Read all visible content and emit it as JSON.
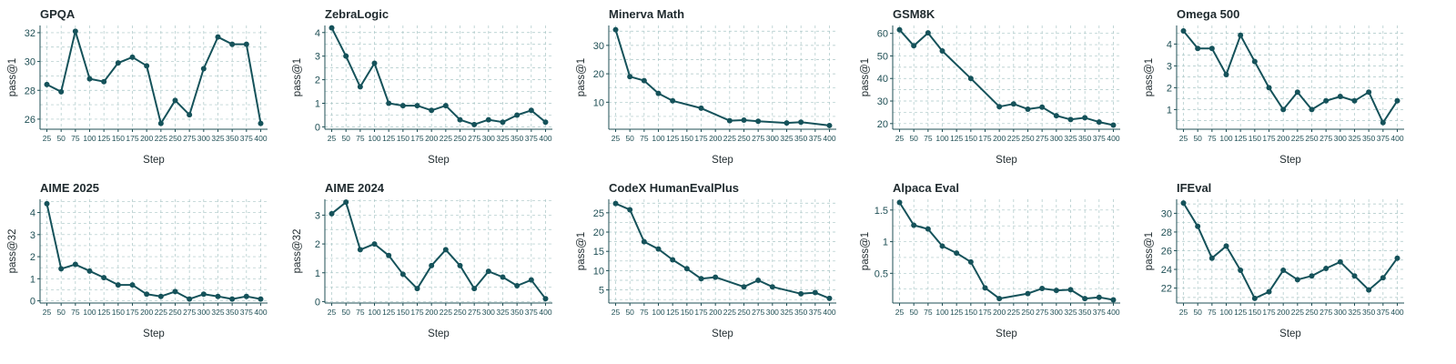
{
  "colors": {
    "series": "#15525a"
  },
  "chart_data": [
    {
      "type": "line",
      "title": "GPQA",
      "xlabel": "Step",
      "ylabel": "pass@1",
      "ylim": [
        25.3,
        32.5
      ],
      "yticks": [
        26,
        28,
        30,
        32
      ],
      "x": [
        25,
        50,
        75,
        100,
        125,
        150,
        175,
        200,
        225,
        250,
        275,
        300,
        325,
        350,
        375,
        400
      ],
      "series": [
        {
          "values": [
            28.4,
            27.9,
            32.1,
            28.8,
            28.6,
            29.9,
            30.3,
            29.7,
            25.7,
            27.3,
            26.3,
            29.5,
            31.7,
            31.2,
            31.2,
            25.7
          ]
        }
      ]
    },
    {
      "type": "line",
      "title": "ZebraLogic",
      "xlabel": "Step",
      "ylabel": "pass@1",
      "ylim": [
        -0.1,
        4.3
      ],
      "yticks": [
        0,
        1,
        2,
        3,
        4
      ],
      "x": [
        25,
        50,
        75,
        100,
        125,
        150,
        175,
        200,
        225,
        250,
        275,
        300,
        325,
        350,
        375,
        400
      ],
      "series": [
        {
          "values": [
            4.2,
            3.0,
            1.7,
            2.7,
            1.0,
            0.9,
            0.9,
            0.7,
            0.9,
            0.3,
            0.1,
            0.3,
            0.2,
            0.5,
            0.7,
            0.2
          ]
        }
      ]
    },
    {
      "type": "line",
      "title": "Minerva Math",
      "xlabel": "Step",
      "ylabel": "pass@1",
      "ylim": [
        0.5,
        37
      ],
      "yticks": [
        10,
        20,
        30
      ],
      "x": [
        25,
        50,
        75,
        100,
        125,
        175,
        225,
        250,
        275,
        325,
        350,
        400
      ],
      "series": [
        {
          "values": [
            35.5,
            19.0,
            17.6,
            13.1,
            10.5,
            7.9,
            3.5,
            3.7,
            3.3,
            2.7,
            3.0,
            1.8
          ]
        }
      ]
    },
    {
      "type": "line",
      "title": "GSM8K",
      "xlabel": "Step",
      "ylabel": "pass@1",
      "ylim": [
        17.5,
        63.5
      ],
      "yticks": [
        20,
        30,
        40,
        50,
        60
      ],
      "x": [
        25,
        50,
        75,
        100,
        150,
        200,
        225,
        250,
        275,
        300,
        325,
        350,
        375,
        400
      ],
      "series": [
        {
          "values": [
            61.6,
            54.5,
            60.2,
            52.2,
            40.0,
            27.5,
            28.7,
            26.4,
            27.3,
            23.5,
            21.8,
            22.6,
            20.7,
            19.3
          ]
        }
      ]
    },
    {
      "type": "line",
      "title": "Omega 500",
      "xlabel": "Step",
      "ylabel": "pass@1",
      "ylim": [
        0.1,
        4.85
      ],
      "yticks": [
        1,
        2,
        3,
        4
      ],
      "x": [
        25,
        50,
        75,
        100,
        125,
        150,
        175,
        200,
        225,
        250,
        275,
        300,
        325,
        350,
        375,
        400
      ],
      "series": [
        {
          "values": [
            4.6,
            3.8,
            3.8,
            2.6,
            4.4,
            3.2,
            2.0,
            1.0,
            1.8,
            1.0,
            1.4,
            1.6,
            1.4,
            1.8,
            0.4,
            1.4
          ]
        }
      ]
    },
    {
      "type": "line",
      "title": "AIME 2025",
      "xlabel": "Step",
      "ylabel": "pass@32",
      "ylim": [
        -0.1,
        4.6
      ],
      "yticks": [
        0,
        1,
        2,
        3,
        4
      ],
      "x": [
        25,
        50,
        75,
        100,
        125,
        150,
        175,
        200,
        225,
        250,
        275,
        300,
        325,
        350,
        375,
        400
      ],
      "series": [
        {
          "values": [
            4.4,
            1.45,
            1.65,
            1.35,
            1.05,
            0.72,
            0.72,
            0.3,
            0.2,
            0.42,
            0.08,
            0.3,
            0.2,
            0.08,
            0.2,
            0.08
          ]
        }
      ]
    },
    {
      "type": "line",
      "title": "AIME 2024",
      "xlabel": "Step",
      "ylabel": "pass@32",
      "ylim": [
        -0.05,
        3.55
      ],
      "yticks": [
        0,
        1,
        2,
        3
      ],
      "x": [
        25,
        50,
        75,
        100,
        125,
        150,
        175,
        200,
        225,
        250,
        275,
        300,
        325,
        350,
        375,
        400
      ],
      "series": [
        {
          "values": [
            3.05,
            3.45,
            1.8,
            2.0,
            1.6,
            0.95,
            0.45,
            1.25,
            1.8,
            1.25,
            0.45,
            1.05,
            0.85,
            0.55,
            0.75,
            0.1
          ]
        }
      ]
    },
    {
      "type": "line",
      "title": "CodeX HumanEvalPlus",
      "xlabel": "Step",
      "ylabel": "pass@1",
      "ylim": [
        1.6,
        28.5
      ],
      "yticks": [
        5,
        10,
        15,
        20,
        25
      ],
      "x": [
        25,
        50,
        75,
        100,
        125,
        150,
        175,
        200,
        250,
        275,
        300,
        350,
        375,
        400
      ],
      "series": [
        {
          "values": [
            27.4,
            25.8,
            17.5,
            15.6,
            12.8,
            10.5,
            7.9,
            8.3,
            5.8,
            7.5,
            5.8,
            4.0,
            4.3,
            2.8
          ]
        }
      ]
    },
    {
      "type": "line",
      "title": "Alpaca Eval",
      "xlabel": "Step",
      "ylabel": "pass@1",
      "ylim": [
        0.03,
        1.67
      ],
      "yticks": [
        0.5,
        1.0,
        1.5
      ],
      "x": [
        25,
        50,
        75,
        100,
        125,
        150,
        175,
        200,
        250,
        275,
        300,
        325,
        350,
        375,
        400
      ],
      "series": [
        {
          "values": [
            1.62,
            1.26,
            1.2,
            0.93,
            0.82,
            0.68,
            0.27,
            0.1,
            0.18,
            0.26,
            0.23,
            0.24,
            0.1,
            0.12,
            0.08
          ]
        }
      ]
    },
    {
      "type": "line",
      "title": "IFEval",
      "xlabel": "Step",
      "ylabel": "pass@1",
      "ylim": [
        20.4,
        31.5
      ],
      "yticks": [
        22,
        24,
        26,
        28,
        30
      ],
      "x": [
        25,
        50,
        75,
        100,
        125,
        150,
        175,
        200,
        225,
        250,
        275,
        300,
        325,
        350,
        375,
        400
      ],
      "series": [
        {
          "values": [
            31.1,
            28.6,
            25.2,
            26.5,
            23.9,
            20.9,
            21.6,
            23.9,
            22.9,
            23.3,
            24.1,
            24.8,
            23.3,
            21.8,
            23.1,
            25.2
          ]
        }
      ]
    }
  ]
}
